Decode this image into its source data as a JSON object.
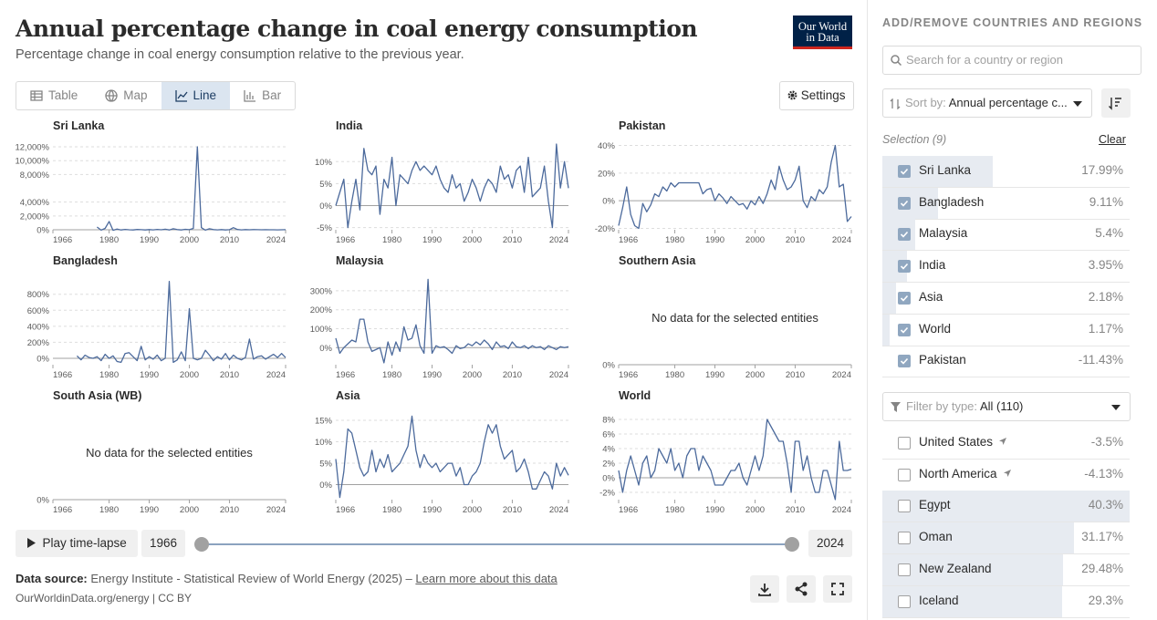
{
  "header": {
    "title": "Annual percentage change in coal energy consumption",
    "subtitle": "Percentage change in coal energy consumption relative to the previous year.",
    "logo": [
      "Our World",
      "in Data"
    ]
  },
  "tabs": [
    {
      "label": "Table",
      "active": false
    },
    {
      "label": "Map",
      "active": false
    },
    {
      "label": "Line",
      "active": true
    },
    {
      "label": "Bar",
      "active": false
    }
  ],
  "settings_button": "Settings",
  "chart_data": [
    {
      "type": "line",
      "title": "Sri Lanka",
      "color": "#4c6a9c",
      "xlim": [
        1966,
        2024
      ],
      "xticks": [
        1966,
        1980,
        1990,
        2000,
        2010,
        2024
      ],
      "ylim": [
        0,
        12400
      ],
      "yticks": [
        {
          "value": 0,
          "label": "0%"
        },
        {
          "value": 2000,
          "label": "2,000%"
        },
        {
          "value": 4000,
          "label": "4,000%"
        },
        {
          "value": 8000,
          "label": "8,000%"
        },
        {
          "value": 10000,
          "label": "10,000%"
        },
        {
          "value": 12000,
          "label": "12,000%"
        }
      ],
      "x": [
        1966,
        1967,
        1968,
        1969,
        1970,
        1971,
        1972,
        1973,
        1974,
        1975,
        1976,
        1977,
        1978,
        1979,
        1980,
        1981,
        1982,
        1983,
        1984,
        1985,
        1986,
        1987,
        1988,
        1989,
        1990,
        1991,
        1992,
        1993,
        1994,
        1995,
        1996,
        1997,
        1998,
        1999,
        2000,
        2001,
        2002,
        2003,
        2004,
        2005,
        2006,
        2007,
        2008,
        2009,
        2010,
        2011,
        2012,
        2013,
        2014,
        2015,
        2016,
        2017,
        2018,
        2019,
        2020,
        2021,
        2022,
        2023,
        2024
      ],
      "values": [
        null,
        null,
        null,
        null,
        null,
        null,
        null,
        null,
        null,
        null,
        null,
        400,
        -50,
        200,
        1200,
        -80,
        100,
        -20,
        50,
        0,
        -30,
        40,
        10,
        -20,
        30,
        -10,
        50,
        0,
        80,
        -20,
        150,
        20,
        -30,
        60,
        10,
        200,
        12000,
        300,
        -50,
        150,
        20,
        -10,
        30,
        -20,
        10,
        300,
        40,
        -10,
        20,
        5,
        30,
        10,
        5,
        10,
        -5,
        3,
        -10,
        5,
        17.99
      ]
    },
    {
      "type": "line",
      "title": "India",
      "color": "#4c6a9c",
      "xlim": [
        1966,
        2024
      ],
      "xticks": [
        1966,
        1980,
        1990,
        2000,
        2010,
        2024
      ],
      "ylim": [
        -5.5,
        14
      ],
      "yticks": [
        {
          "value": -5,
          "label": "-5%"
        },
        {
          "value": 0,
          "label": "0%"
        },
        {
          "value": 5,
          "label": "5%"
        },
        {
          "value": 10,
          "label": "10%"
        }
      ],
      "x": [
        1966,
        1967,
        1968,
        1969,
        1970,
        1971,
        1972,
        1973,
        1974,
        1975,
        1976,
        1977,
        1978,
        1979,
        1980,
        1981,
        1982,
        1983,
        1984,
        1985,
        1986,
        1987,
        1988,
        1989,
        1990,
        1991,
        1992,
        1993,
        1994,
        1995,
        1996,
        1997,
        1998,
        1999,
        2000,
        2001,
        2002,
        2003,
        2004,
        2005,
        2006,
        2007,
        2008,
        2009,
        2010,
        2011,
        2012,
        2013,
        2014,
        2015,
        2016,
        2017,
        2018,
        2019,
        2020,
        2021,
        2022,
        2023,
        2024
      ],
      "values": [
        0,
        3,
        6,
        -5,
        1,
        6,
        -1,
        13,
        8,
        7,
        9,
        -2,
        6,
        4,
        11,
        0,
        7,
        6,
        5,
        8,
        10,
        8,
        9,
        8,
        7,
        9,
        6,
        4,
        3,
        7,
        4,
        5,
        1,
        3,
        6,
        4,
        1,
        4,
        6,
        5,
        3,
        9,
        6,
        7,
        4,
        8,
        9,
        3,
        11,
        2,
        3,
        4,
        9,
        1,
        -5,
        14,
        4,
        10,
        3.95
      ]
    },
    {
      "type": "line",
      "title": "Pakistan",
      "color": "#4c6a9c",
      "xlim": [
        1966,
        2024
      ],
      "xticks": [
        1966,
        1980,
        1990,
        2000,
        2010,
        2024
      ],
      "ylim": [
        -21,
        41
      ],
      "yticks": [
        {
          "value": -20,
          "label": "-20%"
        },
        {
          "value": 0,
          "label": "0%"
        },
        {
          "value": 20,
          "label": "20%"
        },
        {
          "value": 40,
          "label": "40%"
        }
      ],
      "x": [
        1966,
        1967,
        1968,
        1969,
        1970,
        1971,
        1972,
        1973,
        1974,
        1975,
        1976,
        1977,
        1978,
        1979,
        1980,
        1981,
        1982,
        1983,
        1984,
        1985,
        1986,
        1987,
        1988,
        1989,
        1990,
        1991,
        1992,
        1993,
        1994,
        1995,
        1996,
        1997,
        1998,
        1999,
        2000,
        2001,
        2002,
        2003,
        2004,
        2005,
        2006,
        2007,
        2008,
        2009,
        2010,
        2011,
        2012,
        2013,
        2014,
        2015,
        2016,
        2017,
        2018,
        2019,
        2020,
        2021,
        2022,
        2023,
        2024
      ],
      "values": [
        -18,
        -5,
        10,
        -10,
        -18,
        -20,
        -2,
        -8,
        -3,
        5,
        3,
        10,
        7,
        13,
        10,
        13,
        13,
        13,
        13,
        13,
        13,
        5,
        8,
        9,
        0,
        5,
        2,
        -2,
        3,
        0,
        -3,
        -2,
        -6,
        0,
        -3,
        3,
        -2,
        5,
        15,
        8,
        25,
        15,
        8,
        10,
        15,
        25,
        0,
        -5,
        3,
        0,
        8,
        5,
        10,
        28,
        40,
        10,
        12,
        -15,
        -11.43
      ]
    },
    {
      "type": "line",
      "title": "Bangladesh",
      "color": "#4c6a9c",
      "xlim": [
        1966,
        2024
      ],
      "xticks": [
        1966,
        1980,
        1990,
        2000,
        2010,
        2024
      ],
      "ylim": [
        -80,
        990
      ],
      "yticks": [
        {
          "value": 0,
          "label": "0%"
        },
        {
          "value": 200,
          "label": "200%"
        },
        {
          "value": 400,
          "label": "400%"
        },
        {
          "value": 600,
          "label": "600%"
        },
        {
          "value": 800,
          "label": "800%"
        }
      ],
      "x": [
        1966,
        1967,
        1968,
        1969,
        1970,
        1971,
        1972,
        1973,
        1974,
        1975,
        1976,
        1977,
        1978,
        1979,
        1980,
        1981,
        1982,
        1983,
        1984,
        1985,
        1986,
        1987,
        1988,
        1989,
        1990,
        1991,
        1992,
        1993,
        1994,
        1995,
        1996,
        1997,
        1998,
        1999,
        2000,
        2001,
        2002,
        2003,
        2004,
        2005,
        2006,
        2007,
        2008,
        2009,
        2010,
        2011,
        2012,
        2013,
        2014,
        2015,
        2016,
        2017,
        2018,
        2019,
        2020,
        2021,
        2022,
        2023,
        2024
      ],
      "values": [
        null,
        null,
        null,
        null,
        null,
        null,
        30,
        -20,
        40,
        10,
        0,
        20,
        -30,
        50,
        0,
        30,
        -40,
        -50,
        60,
        70,
        20,
        -30,
        150,
        -20,
        20,
        -10,
        40,
        -30,
        0,
        960,
        -50,
        -20,
        80,
        -30,
        620,
        0,
        -20,
        0,
        100,
        40,
        -30,
        20,
        -10,
        60,
        -20,
        40,
        0,
        -20,
        10,
        240,
        -10,
        20,
        30,
        -10,
        20,
        50,
        10,
        60,
        9.11
      ]
    },
    {
      "type": "line",
      "title": "Malaysia",
      "color": "#4c6a9c",
      "xlim": [
        1966,
        2024
      ],
      "xticks": [
        1966,
        1980,
        1990,
        2000,
        2010,
        2024
      ],
      "ylim": [
        -90,
        362
      ],
      "yticks": [
        {
          "value": 0,
          "label": "0%"
        },
        {
          "value": 100,
          "label": "100%"
        },
        {
          "value": 200,
          "label": "200%"
        },
        {
          "value": 300,
          "label": "300%"
        }
      ],
      "x": [
        1966,
        1967,
        1968,
        1969,
        1970,
        1971,
        1972,
        1973,
        1974,
        1975,
        1976,
        1977,
        1978,
        1979,
        1980,
        1981,
        1982,
        1983,
        1984,
        1985,
        1986,
        1987,
        1988,
        1989,
        1990,
        1991,
        1992,
        1993,
        1994,
        1995,
        1996,
        1997,
        1998,
        1999,
        2000,
        2001,
        2002,
        2003,
        2004,
        2005,
        2006,
        2007,
        2008,
        2009,
        2010,
        2011,
        2012,
        2013,
        2014,
        2015,
        2016,
        2017,
        2018,
        2019,
        2020,
        2021,
        2022,
        2023,
        2024
      ],
      "values": [
        50,
        -30,
        0,
        20,
        40,
        30,
        150,
        150,
        30,
        -20,
        -10,
        0,
        -80,
        30,
        -40,
        30,
        -20,
        110,
        40,
        50,
        120,
        10,
        -30,
        360,
        -30,
        10,
        0,
        5,
        -10,
        -30,
        10,
        -5,
        0,
        20,
        10,
        30,
        15,
        40,
        20,
        -10,
        30,
        5,
        10,
        -5,
        30,
        5,
        0,
        10,
        -5,
        10,
        0,
        5,
        -10,
        10,
        0,
        -10,
        5,
        0,
        5.4
      ]
    },
    {
      "type": "line",
      "title": "Southern Asia",
      "message": "No data for the selected entities",
      "xlim": [
        1966,
        2024
      ],
      "xticks": [
        1966,
        1980,
        1990,
        2000,
        2010,
        2024
      ],
      "yticks": [
        {
          "value": 0,
          "label": "0%"
        }
      ]
    },
    {
      "type": "line",
      "title": "South Asia (WB)",
      "message": "No data for the selected entities",
      "xlim": [
        1966,
        2024
      ],
      "xticks": [
        1966,
        1980,
        1990,
        2000,
        2010,
        2024
      ],
      "yticks": [
        {
          "value": 0,
          "label": "0%"
        }
      ]
    },
    {
      "type": "line",
      "title": "Asia",
      "color": "#4c6a9c",
      "xlim": [
        1966,
        2024
      ],
      "xticks": [
        1966,
        1980,
        1990,
        2000,
        2010,
        2024
      ],
      "ylim": [
        -3.5,
        16.5
      ],
      "yticks": [
        {
          "value": 0,
          "label": "0%"
        },
        {
          "value": 5,
          "label": "5%"
        },
        {
          "value": 10,
          "label": "10%"
        },
        {
          "value": 15,
          "label": "15%"
        }
      ],
      "x": [
        1966,
        1967,
        1968,
        1969,
        1970,
        1971,
        1972,
        1973,
        1974,
        1975,
        1976,
        1977,
        1978,
        1979,
        1980,
        1981,
        1982,
        1983,
        1984,
        1985,
        1986,
        1987,
        1988,
        1989,
        1990,
        1991,
        1992,
        1993,
        1994,
        1995,
        1996,
        1997,
        1998,
        1999,
        2000,
        2001,
        2002,
        2003,
        2004,
        2005,
        2006,
        2007,
        2008,
        2009,
        2010,
        2011,
        2012,
        2013,
        2014,
        2015,
        2016,
        2017,
        2018,
        2019,
        2020,
        2021,
        2022,
        2023,
        2024
      ],
      "values": [
        6,
        -3,
        3,
        13,
        12,
        8,
        4,
        2,
        3,
        8,
        3,
        6,
        4,
        7,
        3,
        4,
        5,
        7,
        9,
        16,
        8,
        4,
        7,
        5,
        4,
        5,
        3,
        4,
        5,
        5,
        2,
        4,
        0,
        0,
        2,
        3,
        5,
        10,
        14,
        12,
        14,
        9,
        6,
        7,
        8,
        3,
        4,
        6,
        3,
        -1,
        -1,
        1,
        3,
        2,
        -1,
        5,
        2,
        4,
        2.18
      ]
    },
    {
      "type": "line",
      "title": "World",
      "color": "#4c6a9c",
      "xlim": [
        1966,
        2024
      ],
      "xticks": [
        1966,
        1980,
        1990,
        2000,
        2010,
        2024
      ],
      "ylim": [
        -3,
        8.75
      ],
      "yticks": [
        {
          "value": -2,
          "label": "-2%"
        },
        {
          "value": 0,
          "label": "0%"
        },
        {
          "value": 2,
          "label": "2%"
        },
        {
          "value": 4,
          "label": "4%"
        },
        {
          "value": 6,
          "label": "6%"
        },
        {
          "value": 8,
          "label": "8%"
        }
      ],
      "x": [
        1966,
        1967,
        1968,
        1969,
        1970,
        1971,
        1972,
        1973,
        1974,
        1975,
        1976,
        1977,
        1978,
        1979,
        1980,
        1981,
        1982,
        1983,
        1984,
        1985,
        1986,
        1987,
        1988,
        1989,
        1990,
        1991,
        1992,
        1993,
        1994,
        1995,
        1996,
        1997,
        1998,
        1999,
        2000,
        2001,
        2002,
        2003,
        2004,
        2005,
        2006,
        2007,
        2008,
        2009,
        2010,
        2011,
        2012,
        2013,
        2014,
        2015,
        2016,
        2017,
        2018,
        2019,
        2020,
        2021,
        2022,
        2023,
        2024
      ],
      "values": [
        1,
        -2,
        1,
        3,
        1,
        -1,
        2,
        3,
        0,
        1,
        4,
        3,
        2,
        4,
        1,
        2,
        0,
        3,
        4,
        4,
        1,
        3,
        2,
        1,
        -1,
        -1,
        -1,
        0,
        1,
        1,
        2,
        0,
        -1,
        1,
        3,
        1,
        3,
        8,
        7,
        6,
        5,
        5,
        2,
        -2,
        5,
        5,
        1,
        3,
        0,
        -2,
        -2,
        1,
        1,
        -1,
        -3,
        5,
        1,
        1,
        1.17
      ]
    }
  ],
  "timeline": {
    "play": "Play time-lapse",
    "start": 1966,
    "end": 2024
  },
  "footer": {
    "source_label": "Data source:",
    "source": "Energy Institute - Statistical Review of World Energy (2025)",
    "separator": "–",
    "link": "Learn more about this data",
    "url": "OurWorldinData.org/energy | CC BY"
  },
  "sidebar": {
    "title": "ADD/REMOVE COUNTRIES AND REGIONS",
    "search": "Search for a country or region",
    "sort_label": "Sort by:",
    "sort_value": "Annual percentage c...",
    "selection": "Selection (9)",
    "clear": "Clear",
    "selected": [
      {
        "name": "Sri Lanka",
        "value": 17.99,
        "value_label": "17.99%"
      },
      {
        "name": "Bangladesh",
        "value": 9.11,
        "value_label": "9.11%"
      },
      {
        "name": "Malaysia",
        "value": 5.4,
        "value_label": "5.4%"
      },
      {
        "name": "India",
        "value": 3.95,
        "value_label": "3.95%"
      },
      {
        "name": "Asia",
        "value": 2.18,
        "value_label": "2.18%"
      },
      {
        "name": "World",
        "value": 1.17,
        "value_label": "1.17%"
      },
      {
        "name": "Pakistan",
        "value": -11.43,
        "value_label": "-11.43%"
      }
    ],
    "filter_label": "Filter by type:",
    "filter_value": "All (110)",
    "others": [
      {
        "name": "United States",
        "value": -3.5,
        "value_label": "-3.5%",
        "pin": true
      },
      {
        "name": "North America",
        "value": -4.13,
        "value_label": "-4.13%",
        "pin": true
      },
      {
        "name": "Egypt",
        "value": 40.3,
        "value_label": "40.3%"
      },
      {
        "name": "Oman",
        "value": 31.17,
        "value_label": "31.17%"
      },
      {
        "name": "New Zealand",
        "value": 29.48,
        "value_label": "29.48%"
      },
      {
        "name": "Iceland",
        "value": 29.3,
        "value_label": "29.3%"
      }
    ]
  }
}
